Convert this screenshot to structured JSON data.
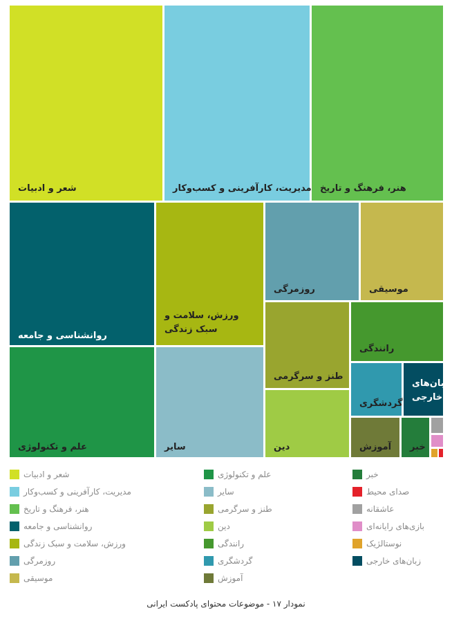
{
  "chart_data": {
    "type": "treemap",
    "title": "نمودار ۱۷ - موضوعات محتوای پادکست ایرانی",
    "items": [
      {
        "label": "شعر و ادبیات",
        "value": 10.5,
        "color": "#d1e026",
        "text_color": "#222222"
      },
      {
        "label": "مدیریت، کارآفرینی و کسب‌وکار",
        "value": 10.0,
        "color": "#79cde0",
        "text_color": "#222222"
      },
      {
        "label": "هنر، فرهنگ و تاریخ",
        "value": 8.5,
        "color": "#64c04f",
        "text_color": "#222222"
      },
      {
        "label": "روانشناسی و جامعه",
        "value": 7.3,
        "color": "#03616c",
        "text_color": "#ffffff"
      },
      {
        "label": "ورزش، سلامت و سبک زندگی",
        "value": 6.8,
        "color": "#a7b712",
        "text_color": "#222222"
      },
      {
        "label": "روزمرگی",
        "value": 3.6,
        "color": "#629fad",
        "text_color": "#222222"
      },
      {
        "label": "موسیقی",
        "value": 3.1,
        "color": "#c5b84e",
        "text_color": "#222222"
      },
      {
        "label": "علم و تکنولوژی",
        "value": 7.0,
        "color": "#1f9547",
        "text_color": "#222222"
      },
      {
        "label": "سایر",
        "value": 6.1,
        "color": "#8bbcc8",
        "text_color": "#222222"
      },
      {
        "label": "طنز و سرگرمی",
        "value": 3.2,
        "color": "#99a52f",
        "text_color": "#222222"
      },
      {
        "label": "دین",
        "value": 2.5,
        "color": "#9fcb45",
        "text_color": "#222222"
      },
      {
        "label": "رانندگی",
        "value": 2.2,
        "color": "#45982e",
        "text_color": "#222222"
      },
      {
        "label": "گردشگری",
        "value": 1.2,
        "color": "#3099ae",
        "text_color": "#222222"
      },
      {
        "label": "زبان‌های خارجی",
        "value": 1.2,
        "color": "#034d61",
        "text_color": "#ffffff"
      },
      {
        "label": "آموزش",
        "value": 1.1,
        "color": "#6f7a38",
        "text_color": "#222222"
      },
      {
        "label": "خبر",
        "value": 0.7,
        "color": "#247d3b",
        "text_color": "#222222"
      },
      {
        "label": "عاشقانه",
        "value": 0.13,
        "color": "#a1a1a1",
        "text_color": "#222222"
      },
      {
        "label": "بازی‌های رایانه‌ای",
        "value": 0.12,
        "color": "#e08ec8",
        "text_color": "#222222"
      },
      {
        "label": "نوستالژیک",
        "value": 0.05,
        "color": "#e0a32b",
        "text_color": "#222222"
      },
      {
        "label": "صدای محیط",
        "value": 0.04,
        "color": "#e4212a",
        "text_color": "#222222"
      }
    ],
    "legend": [
      [
        "شعر و ادبیات",
        "مدیریت، کارآفرینی و کسب‌وکار",
        "هنر، فرهنگ و تاریخ",
        "روانشناسی و جامعه",
        "ورزش، سلامت و سبک زندگی",
        "روزمرگی",
        "موسیقی"
      ],
      [
        "علم و تکنولوژی",
        "سایر",
        "طنز و سرگرمی",
        "دین",
        "رانندگی",
        "گردشگری",
        "آموزش"
      ],
      [
        "خبر",
        "صدای محیط",
        "عاشقانه",
        "بازی‌های رایانه‌ای",
        "نوستالژیک",
        "زبان‌های خارجی"
      ]
    ],
    "legend_position": "bottom"
  }
}
